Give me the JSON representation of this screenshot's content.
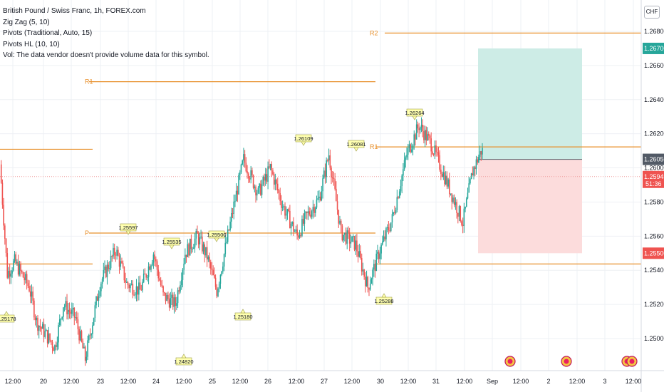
{
  "legend": {
    "symbol_line": "British Pound / Swiss Franc, 1h, FOREX.com",
    "indicators": [
      "Zig Zag (5, 10)",
      "Pivots (Traditional, Auto, 15)",
      "Pivots HL (10, 10)",
      "Vol: The data vendor doesn't provide volume data for this symbol."
    ]
  },
  "currency": "CHF",
  "colors": {
    "up": "#26a69a",
    "down": "#ef5350",
    "pivot": "#e8902c",
    "target_zone": "#cdece6",
    "stop_zone": "#fcdcdc",
    "grid": "#eef0f4",
    "target_badge": "#26a69a",
    "stop_badge": "#ef5350",
    "entry_badge": "#525a66",
    "current_badge": "#ef5350",
    "pivot_label_bg": "#ffffb0"
  },
  "chart_data": {
    "type": "candlestick",
    "ylim": [
      1.2485,
      1.2705
    ],
    "y_ticks": [
      "1.26800",
      "1.26600",
      "1.26400",
      "1.26200",
      "1.26000",
      "1.25800",
      "1.25600",
      "1.25400",
      "1.25200",
      "1.25000"
    ],
    "y_tick_values": [
      1.268,
      1.266,
      1.264,
      1.262,
      1.26,
      1.258,
      1.256,
      1.254,
      1.252,
      1.25
    ],
    "x_ticks": [
      "12:00",
      "20",
      "12:00",
      "23",
      "12:00",
      "24",
      "12:00",
      "25",
      "12:00",
      "26",
      "12:00",
      "27",
      "12:00",
      "30",
      "12:00",
      "31",
      "12:00",
      "Sep",
      "12:00",
      "2",
      "12:00",
      "3",
      "12:00"
    ],
    "pivot_levels": [
      {
        "label": "R2",
        "value": 1.2679
      },
      {
        "label": "R1",
        "value": 1.26505
      },
      {
        "label": "R1",
        "value": 1.26123
      },
      {
        "label": "P",
        "value": 1.25618
      },
      {
        "label": "",
        "value": 1.25437
      },
      {
        "label": "",
        "value": 1.26109
      }
    ],
    "pivot_hl_labels": [
      "1.25178",
      "1.24820",
      "1.25597",
      "1.25535",
      "1.25500",
      "1.25180",
      "1.26109",
      "1.26081",
      "1.25288",
      "1.26264"
    ],
    "position": {
      "target": 1.267,
      "entry": 1.2605,
      "stop": 1.255,
      "target_label": "1.26700",
      "entry_label": "1.26050",
      "stop_label": "1.25500"
    },
    "current_price": {
      "price": 1.25949,
      "label": "1.25949",
      "countdown": "51:36"
    }
  }
}
